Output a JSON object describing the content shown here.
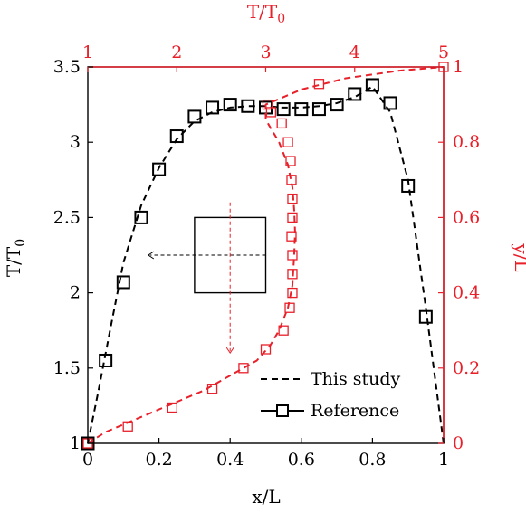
{
  "chart_data": {
    "type": "line",
    "axes": {
      "bottom": {
        "label": "x/L",
        "range": [
          0,
          1
        ],
        "ticks": [
          0,
          0.2,
          0.4,
          0.6,
          0.8,
          1
        ],
        "tick_labels": [
          "0",
          "0.2",
          "0.4",
          "0.6",
          "0.8",
          "1"
        ],
        "color": "#000000"
      },
      "left": {
        "label": "T/T0",
        "range": [
          1,
          3.5
        ],
        "ticks": [
          1,
          1.5,
          2,
          2.5,
          3,
          3.5
        ],
        "tick_labels": [
          "1",
          "1.5",
          "2",
          "2.5",
          "3",
          "3.5"
        ],
        "color": "#000000"
      },
      "top": {
        "label": "T/T0",
        "range": [
          1,
          5
        ],
        "ticks": [
          1,
          2,
          3,
          4,
          5
        ],
        "tick_labels": [
          "1",
          "2",
          "3",
          "4",
          "5"
        ],
        "color": "#e8202a"
      },
      "right": {
        "label": "y/L",
        "range": [
          0,
          1
        ],
        "ticks": [
          0,
          0.2,
          0.4,
          0.6,
          0.8,
          1
        ],
        "tick_labels": [
          "0",
          "0.2",
          "0.4",
          "0.6",
          "0.8",
          "1"
        ],
        "color": "#e8202a"
      }
    },
    "series": [
      {
        "legend": "This study",
        "color": "#000000",
        "style": "dashed",
        "axes": "bottom-left",
        "x": [
          0,
          0.03,
          0.06,
          0.1,
          0.15,
          0.2,
          0.25,
          0.3,
          0.35,
          0.4,
          0.45,
          0.5,
          0.55,
          0.6,
          0.65,
          0.7,
          0.75,
          0.8,
          0.85,
          0.9,
          0.95,
          1.0
        ],
        "y": [
          1.0,
          1.35,
          1.72,
          2.2,
          2.58,
          2.83,
          3.02,
          3.14,
          3.2,
          3.23,
          3.24,
          3.24,
          3.23,
          3.23,
          3.24,
          3.26,
          3.3,
          3.37,
          3.2,
          2.75,
          1.9,
          1.0
        ]
      },
      {
        "legend": "Reference",
        "color": "#000000",
        "style": "solid-square-markers",
        "axes": "bottom-left",
        "x": [
          0,
          0.05,
          0.1,
          0.15,
          0.2,
          0.25,
          0.3,
          0.35,
          0.4,
          0.45,
          0.5,
          0.55,
          0.6,
          0.65,
          0.7,
          0.75,
          0.8,
          0.85,
          0.9,
          0.95
        ],
        "y": [
          1.0,
          1.55,
          2.07,
          2.5,
          2.82,
          3.04,
          3.17,
          3.23,
          3.25,
          3.24,
          3.23,
          3.22,
          3.22,
          3.22,
          3.25,
          3.32,
          3.38,
          3.26,
          2.71,
          1.84
        ]
      },
      {
        "legend": "",
        "color": "#e8202a",
        "style": "dashed",
        "axes": "top-right",
        "x": [
          1.0,
          1.2,
          1.5,
          1.9,
          2.3,
          2.6,
          2.9,
          3.05,
          3.15,
          3.25,
          3.3,
          3.32,
          3.33,
          3.32,
          3.3,
          3.25,
          3.15,
          3.0,
          3.0,
          3.4,
          3.9,
          4.5,
          5.0
        ],
        "y": [
          0.0,
          0.03,
          0.06,
          0.1,
          0.14,
          0.18,
          0.22,
          0.26,
          0.3,
          0.36,
          0.42,
          0.5,
          0.56,
          0.62,
          0.68,
          0.74,
          0.8,
          0.86,
          0.9,
          0.94,
          0.97,
          0.99,
          1.0
        ]
      },
      {
        "legend": "",
        "color": "#e8202a",
        "style": "square-markers",
        "axes": "top-right",
        "x": [
          1.0,
          1.45,
          1.95,
          2.4,
          2.75,
          3.0,
          3.2,
          3.27,
          3.3,
          3.3,
          3.3,
          3.29,
          3.3,
          3.3,
          3.29,
          3.28,
          3.25,
          3.18,
          3.06,
          3.02,
          3.6,
          5.0
        ],
        "y": [
          0.0,
          0.045,
          0.095,
          0.145,
          0.2,
          0.25,
          0.3,
          0.36,
          0.4,
          0.45,
          0.5,
          0.55,
          0.6,
          0.65,
          0.7,
          0.75,
          0.8,
          0.85,
          0.88,
          0.9,
          0.955,
          1.0
        ]
      }
    ],
    "legend": {
      "position": "bottom-right",
      "entries": [
        "This study",
        "Reference"
      ]
    },
    "annotations": {
      "box": {
        "x": [
          0.3,
          0.5
        ],
        "y": [
          2.0,
          2.5
        ],
        "color": "#000000"
      },
      "arrow_left": {
        "x_from": 0.5,
        "x_to": 0.17,
        "y": 2.25,
        "color": "#000000"
      },
      "arrow_down": {
        "x": 0.4,
        "y_from": 2.6,
        "y_to": 1.6,
        "color": "#e8202a"
      }
    },
    "grid": false
  }
}
